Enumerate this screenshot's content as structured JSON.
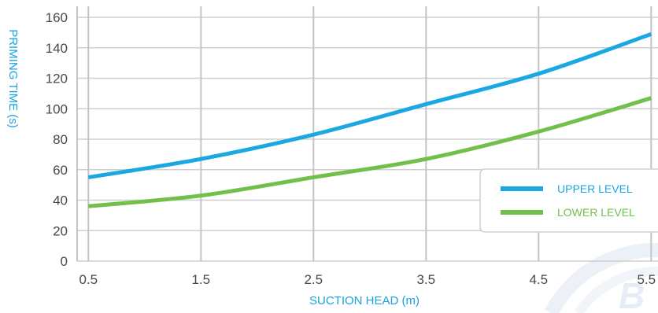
{
  "chart_data": {
    "type": "line",
    "xlabel": "SUCTION HEAD (m)",
    "ylabel": "PRIMING TIME (s)",
    "x": [
      0.5,
      1.5,
      2.5,
      3.5,
      4.5,
      5.5
    ],
    "x_tick_labels": [
      "0.5",
      "1.5",
      "2.5",
      "3.5",
      "4.5",
      "5.5"
    ],
    "y_ticks": [
      0,
      20,
      40,
      60,
      80,
      100,
      120,
      140,
      160
    ],
    "y_tick_labels": [
      "0",
      "20",
      "40",
      "60",
      "80",
      "100",
      "120",
      "140",
      "160"
    ],
    "ylim": [
      0,
      160
    ],
    "grid": "vertical and horizontal",
    "legend_position": "bottom-right",
    "series": [
      {
        "name": "UPPER LEVEL",
        "color": "#1aa8e3",
        "values": [
          55,
          67,
          83,
          103,
          123,
          149
        ]
      },
      {
        "name": "LOWER LEVEL",
        "color": "#72c04a",
        "values": [
          36,
          43,
          55,
          67,
          85,
          107
        ]
      }
    ]
  }
}
